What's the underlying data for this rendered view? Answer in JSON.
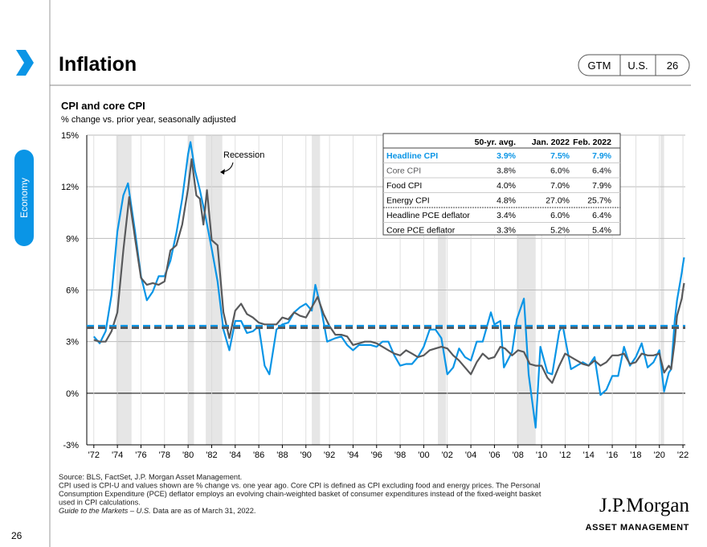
{
  "header": {
    "title": "Inflation",
    "tags": [
      "GTM",
      "U.S.",
      "26"
    ]
  },
  "sidebar": {
    "section": "Economy"
  },
  "page_number": "26",
  "chart_data": {
    "type": "line",
    "title": "CPI and core CPI",
    "subtitle": "% change vs. prior year, seasonally adjusted",
    "xlim": [
      1971.4,
      2022.2
    ],
    "ylim": [
      -3,
      15
    ],
    "yticks": [
      {
        "value": -3,
        "label": "-3%"
      },
      {
        "value": 0,
        "label": "0%"
      },
      {
        "value": 3,
        "label": "3%"
      },
      {
        "value": 6,
        "label": "6%"
      },
      {
        "value": 9,
        "label": "9%"
      },
      {
        "value": 12,
        "label": "12%"
      },
      {
        "value": 15,
        "label": "15%"
      }
    ],
    "xticks": [
      {
        "value": 1972,
        "label": "'72"
      },
      {
        "value": 1974,
        "label": "'74"
      },
      {
        "value": 1976,
        "label": "'76"
      },
      {
        "value": 1978,
        "label": "'78"
      },
      {
        "value": 1980,
        "label": "'80"
      },
      {
        "value": 1982,
        "label": "'82"
      },
      {
        "value": 1984,
        "label": "'84"
      },
      {
        "value": 1986,
        "label": "'86"
      },
      {
        "value": 1988,
        "label": "'88"
      },
      {
        "value": 1990,
        "label": "'90"
      },
      {
        "value": 1992,
        "label": "'92"
      },
      {
        "value": 1994,
        "label": "'94"
      },
      {
        "value": 1996,
        "label": "'96"
      },
      {
        "value": 1998,
        "label": "'98"
      },
      {
        "value": 2000,
        "label": "'00"
      },
      {
        "value": 2002,
        "label": "'02"
      },
      {
        "value": 2004,
        "label": "'04"
      },
      {
        "value": 2006,
        "label": "'06"
      },
      {
        "value": 2008,
        "label": "'08"
      },
      {
        "value": 2010,
        "label": "'10"
      },
      {
        "value": 2012,
        "label": "'12"
      },
      {
        "value": 2014,
        "label": "'14"
      },
      {
        "value": 2016,
        "label": "'16"
      },
      {
        "value": 2018,
        "label": "'18"
      },
      {
        "value": 2020,
        "label": "'20"
      },
      {
        "value": 2022,
        "label": "'22"
      }
    ],
    "grid": true,
    "recession_label": "Recession",
    "recessions": [
      [
        1973.9,
        1975.2
      ],
      [
        1980.0,
        1980.5
      ],
      [
        1981.5,
        1982.9
      ],
      [
        1990.5,
        1991.2
      ],
      [
        2001.2,
        2001.9
      ],
      [
        2007.9,
        2009.5
      ],
      [
        2020.1,
        2020.4
      ]
    ],
    "series": [
      {
        "color": "#0a95e6",
        "average": 3.9,
        "x": [
          1972.0,
          1972.5,
          1973.0,
          1973.5,
          1974.0,
          1974.5,
          1974.9,
          1975.5,
          1976.0,
          1976.5,
          1977.0,
          1977.5,
          1978.0,
          1978.5,
          1979.0,
          1979.5,
          1980.0,
          1980.2,
          1980.6,
          1981.0,
          1981.5,
          1982.0,
          1982.5,
          1983.0,
          1983.5,
          1984.0,
          1984.5,
          1985.0,
          1985.5,
          1986.0,
          1986.5,
          1986.9,
          1987.5,
          1988.0,
          1988.5,
          1989.0,
          1989.5,
          1990.0,
          1990.5,
          1990.8,
          1991.3,
          1991.8,
          1992.5,
          1993.0,
          1993.5,
          1994.0,
          1994.5,
          1995.0,
          1995.5,
          1996.0,
          1996.5,
          1997.0,
          1997.5,
          1998.0,
          1998.5,
          1999.0,
          1999.5,
          2000.0,
          2000.5,
          2001.0,
          2001.5,
          2002.0,
          2002.5,
          2003.0,
          2003.5,
          2004.0,
          2004.5,
          2005.0,
          2005.7,
          2006.0,
          2006.5,
          2006.8,
          2007.5,
          2007.9,
          2008.5,
          2008.9,
          2009.5,
          2009.9,
          2010.5,
          2010.9,
          2011.5,
          2011.8,
          2012.5,
          2013.0,
          2013.5,
          2014.0,
          2014.5,
          2015.0,
          2015.5,
          2016.0,
          2016.5,
          2017.0,
          2017.5,
          2018.0,
          2018.5,
          2019.0,
          2019.5,
          2020.0,
          2020.4,
          2020.8,
          2021.0,
          2021.3,
          2021.5,
          2021.9,
          2022.0,
          2022.1
        ],
        "values": [
          3.3,
          2.9,
          3.6,
          5.7,
          9.4,
          11.5,
          12.2,
          9.4,
          6.8,
          5.4,
          5.9,
          6.8,
          6.8,
          7.7,
          9.3,
          11.3,
          13.9,
          14.6,
          12.9,
          11.8,
          10.2,
          8.4,
          6.5,
          3.7,
          2.5,
          4.2,
          4.2,
          3.5,
          3.6,
          3.9,
          1.6,
          1.1,
          3.7,
          4.0,
          4.1,
          4.7,
          5.0,
          5.2,
          4.8,
          6.3,
          4.9,
          3.0,
          3.2,
          3.3,
          2.8,
          2.5,
          2.8,
          2.8,
          2.8,
          2.7,
          3.0,
          3.0,
          2.2,
          1.6,
          1.7,
          1.7,
          2.1,
          2.7,
          3.7,
          3.7,
          3.2,
          1.1,
          1.5,
          2.6,
          2.1,
          1.9,
          3.0,
          3.0,
          4.7,
          4.0,
          4.2,
          1.5,
          2.4,
          4.3,
          5.5,
          1.1,
          -2.0,
          2.7,
          1.2,
          1.1,
          3.6,
          3.9,
          1.4,
          1.6,
          1.8,
          1.6,
          2.1,
          -0.1,
          0.2,
          1.0,
          1.0,
          2.7,
          1.6,
          2.1,
          2.9,
          1.5,
          1.8,
          2.5,
          0.1,
          1.2,
          1.4,
          4.2,
          5.4,
          7.0,
          7.5,
          7.9
        ]
      },
      {
        "color": "#58595b",
        "average": 3.8,
        "x": [
          1972.0,
          1972.5,
          1973.0,
          1973.5,
          1974.0,
          1974.5,
          1975.0,
          1975.5,
          1976.0,
          1976.5,
          1977.0,
          1977.5,
          1978.0,
          1978.5,
          1979.0,
          1979.5,
          1980.0,
          1980.3,
          1980.7,
          1981.0,
          1981.3,
          1981.6,
          1982.0,
          1982.5,
          1983.0,
          1983.5,
          1984.0,
          1984.5,
          1985.0,
          1985.5,
          1986.0,
          1986.5,
          1987.0,
          1987.5,
          1988.0,
          1988.5,
          1989.0,
          1989.5,
          1990.0,
          1990.5,
          1991.0,
          1991.5,
          1992.0,
          1992.5,
          1993.0,
          1993.5,
          1994.0,
          1994.5,
          1995.0,
          1995.5,
          1996.0,
          1996.5,
          1997.0,
          1997.5,
          1998.0,
          1998.5,
          1999.0,
          1999.5,
          2000.0,
          2000.5,
          2001.0,
          2001.5,
          2002.0,
          2002.5,
          2003.0,
          2003.5,
          2004.0,
          2004.5,
          2005.0,
          2005.5,
          2006.0,
          2006.5,
          2006.9,
          2007.5,
          2008.0,
          2008.5,
          2009.0,
          2009.5,
          2010.0,
          2010.5,
          2010.9,
          2011.5,
          2012.0,
          2012.5,
          2013.0,
          2013.5,
          2014.0,
          2014.5,
          2015.0,
          2015.5,
          2016.0,
          2016.5,
          2017.0,
          2017.5,
          2018.0,
          2018.5,
          2019.0,
          2019.5,
          2020.0,
          2020.4,
          2020.8,
          2021.0,
          2021.3,
          2021.5,
          2021.9,
          2022.0,
          2022.1
        ],
        "values": [
          3.1,
          3.0,
          3.0,
          3.6,
          4.7,
          8.3,
          11.4,
          9.0,
          6.7,
          6.3,
          6.4,
          6.3,
          6.5,
          8.3,
          8.6,
          9.8,
          11.9,
          13.6,
          11.5,
          11.3,
          9.8,
          11.8,
          8.9,
          8.6,
          4.7,
          3.2,
          4.8,
          5.2,
          4.6,
          4.4,
          4.1,
          4.0,
          4.0,
          4.0,
          4.4,
          4.3,
          4.7,
          4.5,
          4.4,
          5.0,
          5.6,
          4.6,
          3.9,
          3.4,
          3.4,
          3.3,
          2.8,
          2.9,
          3.0,
          3.0,
          2.9,
          2.7,
          2.5,
          2.3,
          2.2,
          2.5,
          2.3,
          2.1,
          2.2,
          2.5,
          2.6,
          2.7,
          2.6,
          2.2,
          1.9,
          1.5,
          1.1,
          1.8,
          2.3,
          2.0,
          2.1,
          2.7,
          2.6,
          2.2,
          2.5,
          2.4,
          1.7,
          1.6,
          1.6,
          0.9,
          0.6,
          1.6,
          2.3,
          2.1,
          1.9,
          1.7,
          1.6,
          1.9,
          1.6,
          1.8,
          2.2,
          2.2,
          2.3,
          1.7,
          1.8,
          2.3,
          2.2,
          2.2,
          2.3,
          1.2,
          1.6,
          1.4,
          3.0,
          4.5,
          5.5,
          6.0,
          6.4
        ]
      }
    ],
    "table": {
      "columns": [
        "50-yr. avg.",
        "Jan. 2022",
        "Feb. 2022"
      ],
      "rows": [
        [
          "Headline CPI",
          "3.9%",
          "7.5%",
          "7.9%"
        ],
        [
          "Core CPI",
          "3.8%",
          "6.0%",
          "6.4%"
        ],
        [
          "Food CPI",
          "4.0%",
          "7.0%",
          "7.9%"
        ],
        [
          "Energy CPI",
          "4.8%",
          "27.0%",
          "25.7%"
        ],
        [
          "Headline PCE deflator",
          "3.4%",
          "6.0%",
          "6.4%"
        ],
        [
          "Core PCE deflator",
          "3.3%",
          "5.2%",
          "5.4%"
        ]
      ]
    }
  },
  "footer": {
    "lines": [
      "Source: BLS, FactSet, J.P. Morgan Asset Management.",
      "CPI used is CPI-U and values shown are % change vs. one year ago. Core CPI is defined as CPI excluding food and energy prices. The Personal",
      "Consumption Expenditure (PCE) deflator employs an evolving chain-weighted basket of consumer expenditures instead of the fixed-weight basket",
      "used in CPI calculations."
    ],
    "guide_title": "Guide to the Markets – U.S.",
    "guide_note": " Data are as of March 31, 2022."
  },
  "logo": {
    "name": "J.P.Morgan",
    "tagline": "ASSET MANAGEMENT"
  }
}
